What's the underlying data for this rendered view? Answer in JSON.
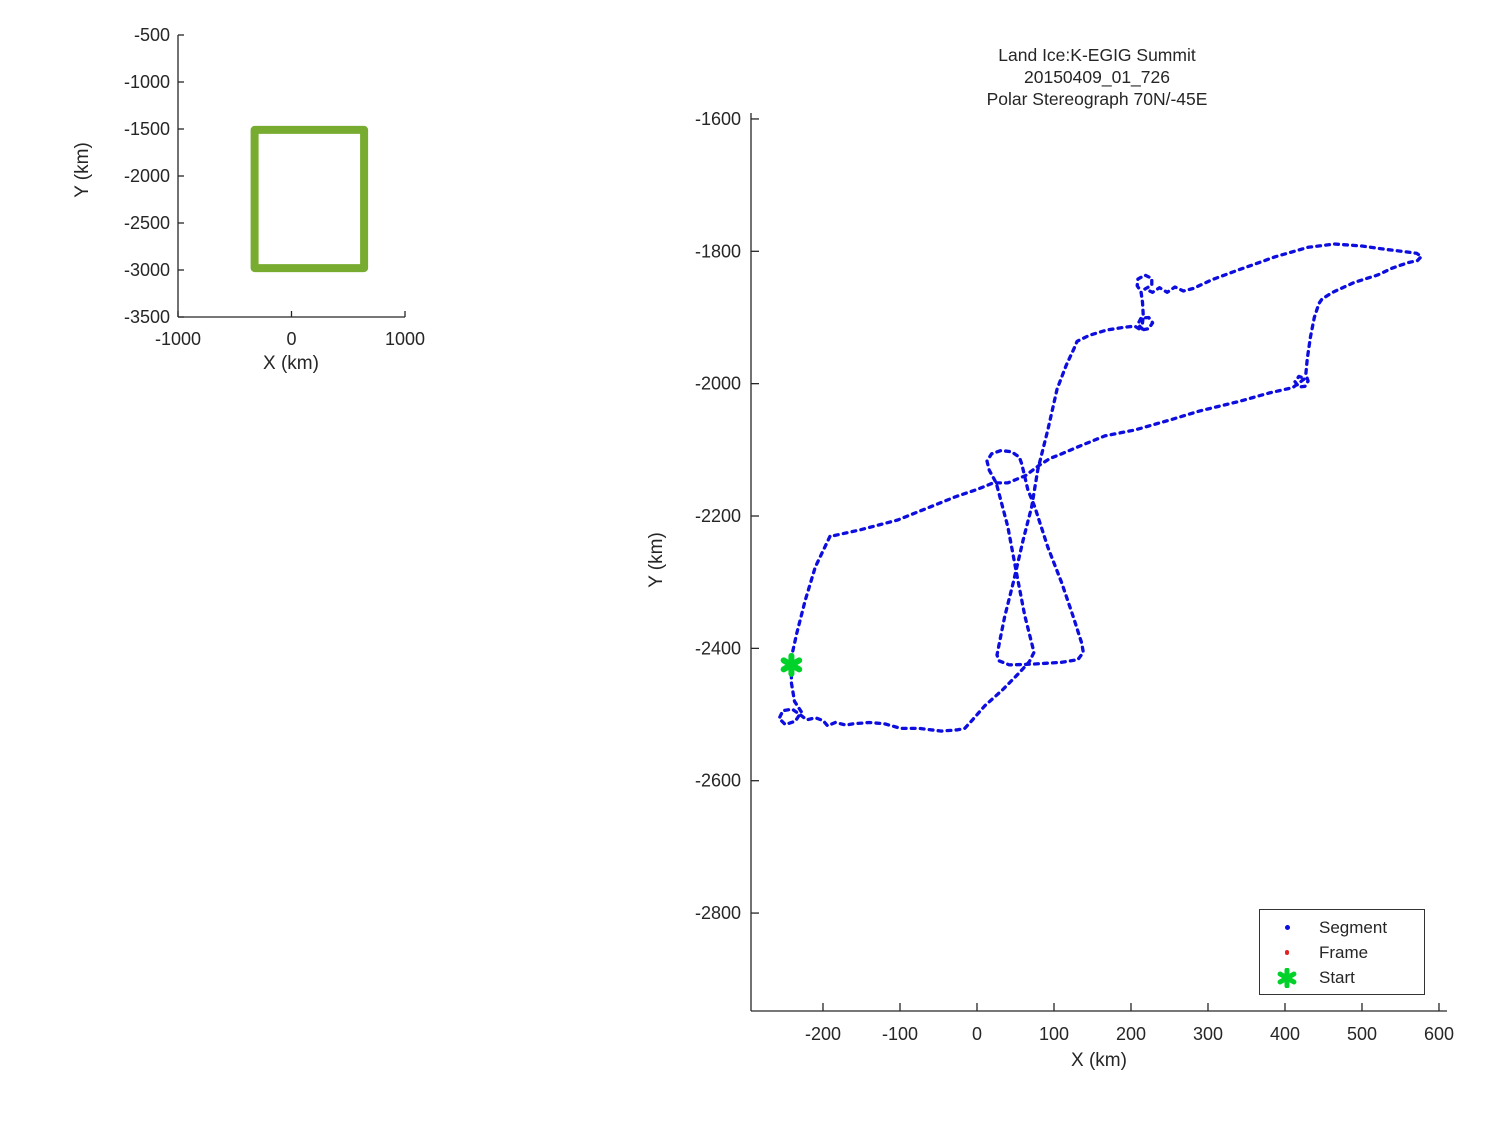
{
  "figure": {
    "background": "#ffffff",
    "text_color": "#262626",
    "track_color": "#0d0ddf",
    "frame_color": "#e02424",
    "start_color": "#00d22a",
    "coverage_box_color": "#77ac30"
  },
  "title": {
    "line1": "Land Ice:K-EGIG Summit",
    "line2": "20150409_01_726",
    "line3": "Polar Stereograph 70N/-45E"
  },
  "legend": {
    "items": [
      {
        "label": "Segment",
        "marker": "dot",
        "color": "#0d0ddf",
        "size": 5
      },
      {
        "label": "Frame",
        "marker": "dot",
        "color": "#e02424",
        "size": 4.5
      },
      {
        "label": "Start",
        "marker": "asterisk",
        "color": "#00d22a",
        "size": 17
      }
    ]
  },
  "chart_data": [
    {
      "id": "overview",
      "type": "line",
      "xlabel": "X (km)",
      "ylabel": "Y (km)",
      "xlim": [
        -1000,
        1000
      ],
      "ylim": [
        -3500,
        -500
      ],
      "x_ticks": [
        -1000,
        0,
        1000
      ],
      "x_tick_labels": [
        "-1000",
        "0",
        "1000"
      ],
      "y_ticks": [
        -500,
        -1000,
        -1500,
        -2000,
        -2500,
        -3000,
        -3500
      ],
      "y_tick_labels": [
        "-500",
        "-1000",
        "-1500",
        "-2000",
        "-2500",
        "-3000",
        "-3500"
      ],
      "grid": false,
      "series": [
        {
          "name": "coverage-box",
          "color": "#77ac30",
          "line_width": 8,
          "style": "solid",
          "closed": true,
          "points": [
            [
              -325,
              -1510
            ],
            [
              640,
              -1510
            ],
            [
              640,
              -2980
            ],
            [
              -325,
              -2980
            ]
          ]
        }
      ]
    },
    {
      "id": "flight-track",
      "type": "line",
      "xlabel": "X (km)",
      "ylabel": "Y (km)",
      "xlim": [
        -293.5,
        610.4
      ],
      "ylim": [
        -2948,
        -1591
      ],
      "x_ticks": [
        -200,
        -100,
        0,
        100,
        200,
        300,
        400,
        500,
        600
      ],
      "x_tick_labels": [
        "-200",
        "-100",
        "0",
        "100",
        "200",
        "300",
        "400",
        "500",
        "600"
      ],
      "y_ticks": [
        -1600,
        -1800,
        -2000,
        -2200,
        -2400,
        -2600,
        -2800
      ],
      "y_tick_labels": [
        "-1600",
        "-1800",
        "-2000",
        "-2200",
        "-2400",
        "-2600",
        "-2800"
      ],
      "grid": false,
      "legend_position": "lower right",
      "series": [
        {
          "name": "Segment",
          "color": "#0d0ddf",
          "style": "dotted",
          "line_width": 3.3,
          "points": [
            [
              -191,
              -2231
            ],
            [
              -210,
              -2277
            ],
            [
              -223,
              -2327
            ],
            [
              -234,
              -2377
            ],
            [
              -240,
              -2408
            ],
            [
              -241,
              -2425
            ],
            [
              -241,
              -2452
            ],
            [
              -237,
              -2480
            ],
            [
              -228,
              -2496
            ],
            [
              -236,
              -2510
            ],
            [
              -249,
              -2515
            ],
            [
              -257,
              -2506
            ],
            [
              -252,
              -2494
            ],
            [
              -240,
              -2492
            ],
            [
              -230,
              -2500
            ],
            [
              -221,
              -2508
            ],
            [
              -210,
              -2505
            ],
            [
              -200,
              -2509
            ],
            [
              -194,
              -2517
            ],
            [
              -184,
              -2512
            ],
            [
              -170,
              -2516
            ],
            [
              -161,
              -2514
            ],
            [
              -140,
              -2512
            ],
            [
              -120,
              -2514
            ],
            [
              -99,
              -2521
            ],
            [
              -75,
              -2521
            ],
            [
              -46,
              -2525
            ],
            [
              -25,
              -2523
            ],
            [
              -16,
              -2521
            ],
            [
              -5,
              -2507
            ],
            [
              10,
              -2487
            ],
            [
              33,
              -2463
            ],
            [
              55,
              -2437
            ],
            [
              68,
              -2420
            ],
            [
              74,
              -2406
            ],
            [
              62,
              -2350
            ],
            [
              52,
              -2290
            ],
            [
              40,
              -2216
            ],
            [
              25,
              -2150
            ],
            [
              16,
              -2131
            ],
            [
              13,
              -2117
            ],
            [
              19,
              -2106
            ],
            [
              31,
              -2101
            ],
            [
              45,
              -2103
            ],
            [
              55,
              -2111
            ],
            [
              58,
              -2121
            ],
            [
              66,
              -2160
            ],
            [
              75,
              -2186
            ],
            [
              92,
              -2247
            ],
            [
              110,
              -2301
            ],
            [
              125,
              -2352
            ],
            [
              136,
              -2392
            ],
            [
              138,
              -2406
            ],
            [
              131,
              -2417
            ],
            [
              110,
              -2421
            ],
            [
              70,
              -2424
            ],
            [
              42,
              -2425
            ],
            [
              29,
              -2419
            ],
            [
              26,
              -2410
            ],
            [
              32,
              -2375
            ],
            [
              36,
              -2352
            ],
            [
              47,
              -2301
            ],
            [
              60,
              -2236
            ],
            [
              71,
              -2186
            ],
            [
              79,
              -2130
            ],
            [
              92,
              -2070
            ],
            [
              104,
              -2008
            ],
            [
              116,
              -1972
            ],
            [
              126,
              -1947
            ],
            [
              130,
              -1936
            ],
            [
              146,
              -1927
            ],
            [
              168,
              -1919
            ],
            [
              190,
              -1915
            ],
            [
              205,
              -1913
            ],
            [
              213,
              -1919
            ],
            [
              223,
              -1917
            ],
            [
              228,
              -1908
            ],
            [
              223,
              -1900
            ],
            [
              213,
              -1901
            ],
            [
              209,
              -1910
            ],
            [
              214,
              -1917
            ],
            [
              216,
              -1898
            ],
            [
              215,
              -1877
            ],
            [
              213,
              -1861
            ],
            [
              208,
              -1852
            ],
            [
              209,
              -1842
            ],
            [
              218,
              -1836
            ],
            [
              227,
              -1841
            ],
            [
              227,
              -1851
            ],
            [
              218,
              -1857
            ],
            [
              228,
              -1862
            ],
            [
              237,
              -1855
            ],
            [
              247,
              -1862
            ],
            [
              257,
              -1854
            ],
            [
              268,
              -1860
            ],
            [
              281,
              -1856
            ],
            [
              305,
              -1843
            ],
            [
              340,
              -1828
            ],
            [
              388,
              -1808
            ],
            [
              430,
              -1794
            ],
            [
              464,
              -1789
            ],
            [
              500,
              -1792
            ],
            [
              530,
              -1797
            ],
            [
              559,
              -1801
            ],
            [
              571,
              -1803
            ],
            [
              577,
              -1808
            ],
            [
              572,
              -1814
            ],
            [
              560,
              -1817
            ],
            [
              540,
              -1825
            ],
            [
              520,
              -1836
            ],
            [
              490,
              -1847
            ],
            [
              462,
              -1862
            ],
            [
              448,
              -1872
            ],
            [
              444,
              -1879
            ],
            [
              438,
              -1900
            ],
            [
              433,
              -1930
            ],
            [
              429,
              -1962
            ],
            [
              427,
              -1986
            ],
            [
              430,
              -1996
            ],
            [
              426,
              -2004
            ],
            [
              418,
              -2005
            ],
            [
              413,
              -1997
            ],
            [
              418,
              -1989
            ],
            [
              426,
              -1992
            ],
            [
              410,
              -2006
            ],
            [
              380,
              -2014
            ],
            [
              340,
              -2027
            ],
            [
              290,
              -2041
            ],
            [
              250,
              -2055
            ],
            [
              205,
              -2070
            ],
            [
              166,
              -2079
            ],
            [
              130,
              -2096
            ],
            [
              110,
              -2106
            ],
            [
              95,
              -2113
            ],
            [
              80,
              -2124
            ],
            [
              63,
              -2139
            ],
            [
              40,
              -2150
            ],
            [
              21,
              -2150
            ],
            [
              0,
              -2160
            ],
            [
              -28,
              -2171
            ],
            [
              -60,
              -2186
            ],
            [
              -103,
              -2206
            ],
            [
              -152,
              -2221
            ],
            [
              -191,
              -2231
            ]
          ]
        },
        {
          "name": "Frame",
          "color": "#e02424",
          "style": "dotted",
          "line_width": 3.3,
          "points": []
        },
        {
          "name": "Start",
          "color": "#00d22a",
          "style": "marker-asterisk",
          "points": [
            [
              -241,
              -2425
            ]
          ]
        }
      ]
    }
  ]
}
